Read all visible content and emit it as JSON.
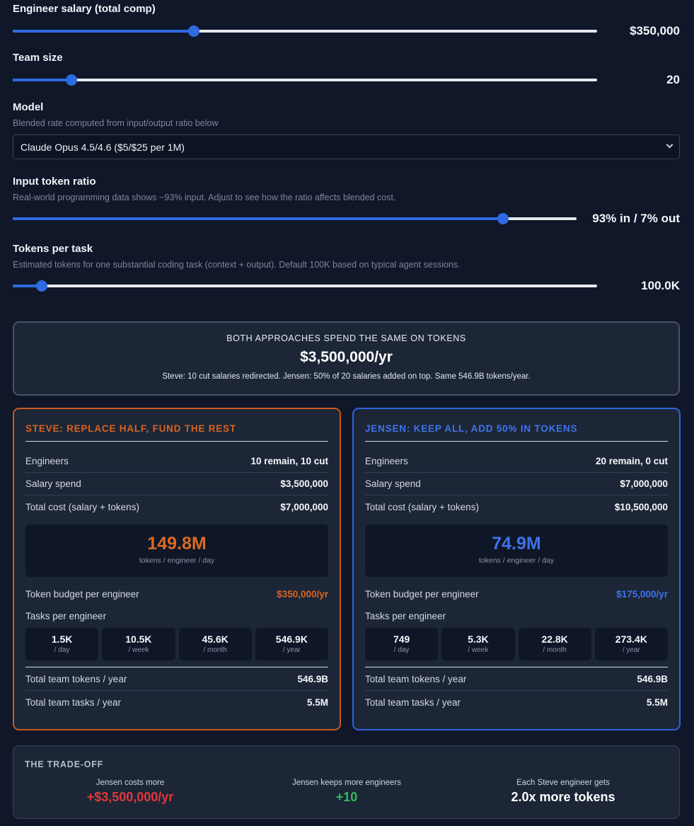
{
  "controls": {
    "salary": {
      "label": "Engineer salary (total comp)",
      "value_text": "$350,000",
      "fraction": 0.31
    },
    "team": {
      "label": "Team size",
      "value_text": "20",
      "fraction": 0.1
    },
    "model": {
      "label": "Model",
      "help": "Blended rate computed from input/output ratio below",
      "selected": "Claude Opus 4.5/4.6 ($5/$25 per 1M)"
    },
    "ratio": {
      "label": "Input token ratio",
      "help": "Real-world programming data shows ~93% input. Adjust to see how the ratio affects blended cost.",
      "value_text": "93% in / 7% out",
      "fraction": 0.87
    },
    "tokens": {
      "label": "Tokens per task",
      "help": "Estimated tokens for one substantial coding task (context + output). Default 100K based on typical agent sessions.",
      "value_text": "100.0K",
      "fraction": 0.05
    }
  },
  "summary": {
    "kicker": "BOTH APPROACHES SPEND THE SAME ON TOKENS",
    "amount": "$3,500,000/yr",
    "subtitle": "Steve: 10 cut salaries redirected. Jensen: 50% of 20 salaries added on top. Same 546.9B tokens/year."
  },
  "labels": {
    "engineers": "Engineers",
    "salary_spend": "Salary spend",
    "total_cost": "Total cost (salary + tokens)",
    "per_engineer_unit": "tokens / engineer / day",
    "token_budget": "Token budget per engineer",
    "tasks_per_engineer": "Tasks per engineer",
    "per_day": "/ day",
    "per_week": "/ week",
    "per_month": "/ month",
    "per_year": "/ year",
    "team_tokens": "Total team tokens / year",
    "team_tasks": "Total team tasks / year"
  },
  "steve": {
    "title": "STEVE: REPLACE HALF, FUND THE REST",
    "engineers": "10 remain, 10 cut",
    "salary_spend": "$3,500,000",
    "total_cost": "$7,000,000",
    "tokens_per_day": "149.8M",
    "token_budget": "$350,000/yr",
    "tasks": {
      "day": "1.5K",
      "week": "10.5K",
      "month": "45.6K",
      "year": "546.9K"
    },
    "team_tokens": "546.9B",
    "team_tasks": "5.5M"
  },
  "jensen": {
    "title": "JENSEN: KEEP ALL, ADD 50% IN TOKENS",
    "engineers": "20 remain, 0 cut",
    "salary_spend": "$7,000,000",
    "total_cost": "$10,500,000",
    "tokens_per_day": "74.9M",
    "token_budget": "$175,000/yr",
    "tasks": {
      "day": "749",
      "week": "5.3K",
      "month": "22.8K",
      "year": "273.4K"
    },
    "team_tokens": "546.9B",
    "team_tasks": "5.5M"
  },
  "tradeoff": {
    "heading": "THE TRADE-OFF",
    "cost_label": "Jensen costs more",
    "cost_value": "+$3,500,000/yr",
    "eng_label": "Jensen keeps more engineers",
    "eng_value": "+10",
    "tokens_label": "Each Steve engineer gets",
    "tokens_value": "2.0x more tokens"
  },
  "colors": {
    "accent_blue": "#2f6ae0",
    "steve_orange": "#d9641f",
    "negative_red": "#e0383a",
    "positive_green": "#2ebd57"
  }
}
